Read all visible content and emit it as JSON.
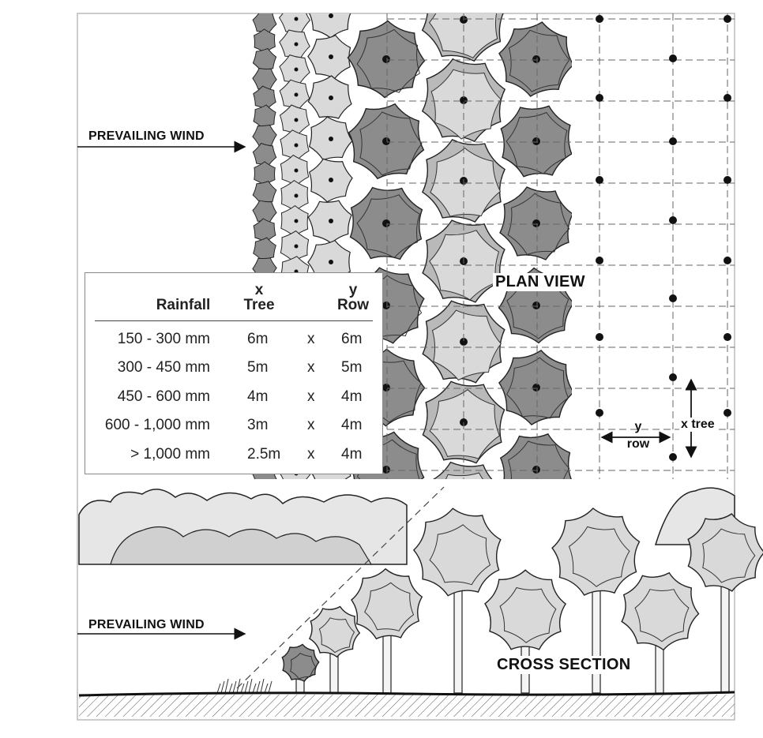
{
  "labels": {
    "wind_top": "PREVAILING WIND",
    "wind_bottom": "PREVAILING WIND",
    "plan_view": "PLAN VIEW",
    "cross_section": "CROSS SECTION",
    "y_axis": "y",
    "row_axis": "row",
    "x_tree_axis": "x tree"
  },
  "table": {
    "headers": {
      "rainfall": "Rainfall",
      "x_letter": "x",
      "tree": "Tree",
      "y_letter": "y",
      "row": "Row"
    },
    "rows": [
      {
        "rainfall": "150 - 300 mm",
        "tree": "6m",
        "times": "x",
        "row": "6m"
      },
      {
        "rainfall": "300 - 450 mm",
        "tree": "5m",
        "times": "x",
        "row": "5m"
      },
      {
        "rainfall": "450 - 600 mm",
        "tree": "4m",
        "times": "x",
        "row": "4m"
      },
      {
        "rainfall": "600 - 1,000 mm",
        "tree": "3m",
        "times": "x",
        "row": "4m"
      },
      {
        "rainfall": "> 1,000 mm",
        "tree": "2.5m",
        "times": "x",
        "row": "4m"
      }
    ]
  },
  "colors": {
    "dark_canopy": "#8c8c8c",
    "mid_canopy": "#b9b9b9",
    "light_canopy": "#d9d9d9",
    "ink": "#111111"
  }
}
